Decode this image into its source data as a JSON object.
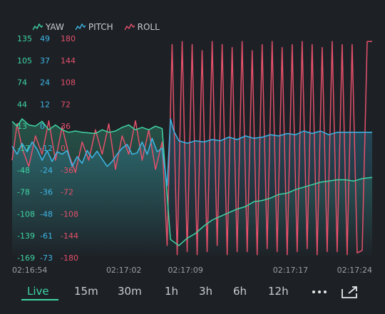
{
  "chart_data": {
    "type": "line",
    "series": [
      {
        "name": "YAW",
        "color": "#3ed5a2",
        "points": [
          [
            0,
            44
          ],
          [
            0.3,
            36
          ],
          [
            0.6,
            48
          ],
          [
            1.0,
            38
          ],
          [
            1.4,
            36
          ],
          [
            1.8,
            44
          ],
          [
            2.2,
            30
          ],
          [
            2.6,
            38
          ],
          [
            3.0,
            30
          ],
          [
            3.4,
            26
          ],
          [
            3.8,
            28
          ],
          [
            4.2,
            26
          ],
          [
            4.6,
            25
          ],
          [
            5.0,
            24
          ],
          [
            5.4,
            30
          ],
          [
            5.8,
            26
          ],
          [
            6.2,
            28
          ],
          [
            6.6,
            34
          ],
          [
            7.0,
            38
          ],
          [
            7.4,
            30
          ],
          [
            7.8,
            34
          ],
          [
            8.2,
            30
          ],
          [
            8.6,
            36
          ],
          [
            9.0,
            32
          ],
          [
            9.5,
            -150
          ],
          [
            10.0,
            -160
          ],
          [
            10.5,
            -148
          ],
          [
            11.0,
            -140
          ],
          [
            11.5,
            -128
          ],
          [
            12.0,
            -118
          ],
          [
            12.5,
            -112
          ],
          [
            13.0,
            -106
          ],
          [
            13.5,
            -100
          ],
          [
            14.0,
            -96
          ],
          [
            14.5,
            -88
          ],
          [
            15.0,
            -86
          ],
          [
            15.5,
            -82
          ],
          [
            16.0,
            -76
          ],
          [
            16.5,
            -74
          ],
          [
            17.0,
            -68
          ],
          [
            17.5,
            -64
          ],
          [
            18.0,
            -60
          ],
          [
            18.5,
            -56
          ],
          [
            19.0,
            -54
          ],
          [
            19.5,
            -52
          ],
          [
            20.0,
            -52
          ],
          [
            20.5,
            -54
          ],
          [
            21.0,
            -50
          ],
          [
            21.6,
            -48
          ]
        ]
      },
      {
        "name": "PITCH",
        "color": "#3eb6e6",
        "points": [
          [
            0,
            3
          ],
          [
            0.3,
            -10
          ],
          [
            0.6,
            8
          ],
          [
            0.9,
            -6
          ],
          [
            1.2,
            10
          ],
          [
            1.5,
            -2
          ],
          [
            1.8,
            -20
          ],
          [
            2.1,
            -4
          ],
          [
            2.4,
            -22
          ],
          [
            2.7,
            -6
          ],
          [
            3.0,
            -10
          ],
          [
            3.3,
            -4
          ],
          [
            3.6,
            -30
          ],
          [
            3.9,
            -14
          ],
          [
            4.2,
            -25
          ],
          [
            4.5,
            -4
          ],
          [
            4.8,
            -16
          ],
          [
            5.1,
            -5
          ],
          [
            5.4,
            -18
          ],
          [
            5.7,
            -30
          ],
          [
            6.0,
            -22
          ],
          [
            6.3,
            -10
          ],
          [
            6.6,
            0
          ],
          [
            6.9,
            6
          ],
          [
            7.2,
            -10
          ],
          [
            7.5,
            -8
          ],
          [
            7.8,
            10
          ],
          [
            8.1,
            -10
          ],
          [
            8.4,
            16
          ],
          [
            8.7,
            -6
          ],
          [
            9.0,
            0
          ],
          [
            9.3,
            -62
          ],
          [
            9.5,
            48
          ],
          [
            9.7,
            28
          ],
          [
            10.0,
            12
          ],
          [
            10.5,
            8
          ],
          [
            11.0,
            12
          ],
          [
            11.5,
            10
          ],
          [
            12.0,
            14
          ],
          [
            12.5,
            12
          ],
          [
            13.0,
            18
          ],
          [
            13.5,
            14
          ],
          [
            14.0,
            20
          ],
          [
            14.5,
            16
          ],
          [
            15.0,
            18
          ],
          [
            15.5,
            22
          ],
          [
            16.0,
            20
          ],
          [
            16.5,
            24
          ],
          [
            17.0,
            22
          ],
          [
            17.5,
            28
          ],
          [
            18.0,
            24
          ],
          [
            18.5,
            28
          ],
          [
            19.0,
            22
          ],
          [
            19.5,
            26
          ],
          [
            20.0,
            26
          ],
          [
            20.5,
            26
          ],
          [
            21.0,
            26
          ],
          [
            21.6,
            26
          ]
        ]
      },
      {
        "name": "ROLL",
        "color": "#e5506a",
        "points": [
          [
            0,
            -20
          ],
          [
            0.3,
            40
          ],
          [
            0.6,
            0
          ],
          [
            1.0,
            -30
          ],
          [
            1.4,
            20
          ],
          [
            1.8,
            -10
          ],
          [
            2.2,
            45
          ],
          [
            2.6,
            -20
          ],
          [
            3.0,
            35
          ],
          [
            3.4,
            -10
          ],
          [
            3.8,
            -40
          ],
          [
            4.2,
            10
          ],
          [
            4.6,
            -20
          ],
          [
            5.0,
            30
          ],
          [
            5.4,
            -10
          ],
          [
            5.8,
            40
          ],
          [
            6.2,
            -35
          ],
          [
            6.6,
            20
          ],
          [
            7.0,
            -10
          ],
          [
            7.4,
            45
          ],
          [
            7.8,
            -20
          ],
          [
            8.2,
            30
          ],
          [
            8.6,
            -35
          ],
          [
            9.0,
            10
          ],
          [
            9.3,
            -160
          ],
          [
            9.6,
            170
          ],
          [
            9.9,
            -175
          ],
          [
            10.2,
            175
          ],
          [
            10.5,
            -170
          ],
          [
            10.8,
            170
          ],
          [
            11.1,
            -175
          ],
          [
            11.4,
            160
          ],
          [
            11.7,
            -170
          ],
          [
            12.0,
            175
          ],
          [
            12.3,
            -160
          ],
          [
            12.6,
            170
          ],
          [
            12.9,
            -175
          ],
          [
            13.2,
            165
          ],
          [
            13.5,
            -170
          ],
          [
            13.8,
            175
          ],
          [
            14.1,
            -170
          ],
          [
            14.4,
            160
          ],
          [
            14.7,
            -175
          ],
          [
            15.0,
            170
          ],
          [
            15.3,
            -165
          ],
          [
            15.6,
            175
          ],
          [
            15.9,
            -170
          ],
          [
            16.2,
            165
          ],
          [
            16.5,
            -175
          ],
          [
            16.8,
            170
          ],
          [
            17.1,
            -170
          ],
          [
            17.4,
            175
          ],
          [
            17.7,
            -165
          ],
          [
            18.0,
            170
          ],
          [
            18.3,
            -175
          ],
          [
            18.6,
            165
          ],
          [
            18.9,
            -170
          ],
          [
            19.2,
            175
          ],
          [
            19.5,
            -170
          ],
          [
            19.8,
            170
          ],
          [
            20.1,
            -175
          ],
          [
            20.4,
            170
          ],
          [
            20.7,
            -172
          ],
          [
            21.0,
            -168
          ],
          [
            21.3,
            175
          ],
          [
            21.6,
            175
          ]
        ]
      }
    ],
    "left_ticks": [
      {
        "yaw": "135",
        "pitch": "49",
        "roll": "180"
      },
      {
        "yaw": "105",
        "pitch": "37",
        "roll": "144"
      },
      {
        "yaw": "74",
        "pitch": "24",
        "roll": "108"
      },
      {
        "yaw": "44",
        "pitch": "12",
        "roll": "72"
      },
      {
        "yaw": "13",
        "pitch": "0",
        "roll": "36"
      },
      {
        "yaw": "-17",
        "pitch": "-12",
        "roll": "0"
      },
      {
        "yaw": "-48",
        "pitch": "-24",
        "roll": "-36"
      },
      {
        "yaw": "-78",
        "pitch": "-36",
        "roll": "-72"
      },
      {
        "yaw": "-108",
        "pitch": "-48",
        "roll": "-108"
      },
      {
        "yaw": "-139",
        "pitch": "-61",
        "roll": "-144"
      },
      {
        "yaw": "-169",
        "pitch": "-73",
        "roll": "-180"
      }
    ],
    "x_ticks": [
      {
        "t": 0,
        "label": "02:16:54"
      },
      {
        "t": 6.7,
        "label": "02:17:02"
      },
      {
        "t": 10.4,
        "label": "02:17:09"
      },
      {
        "t": 16.7,
        "label": "02:17:17"
      },
      {
        "t": 21.6,
        "label": "02:17:24"
      }
    ],
    "x_range": [
      0,
      21.6
    ],
    "y_range": [
      -180,
      180
    ],
    "grid": false,
    "legend_position": "top-left"
  },
  "toolbar": {
    "ranges": [
      "Live",
      "15m",
      "30m",
      "1h",
      "3h",
      "6h",
      "12h"
    ],
    "active": "Live",
    "more_icon": "ellipsis-icon",
    "expand_icon": "expand-icon"
  }
}
